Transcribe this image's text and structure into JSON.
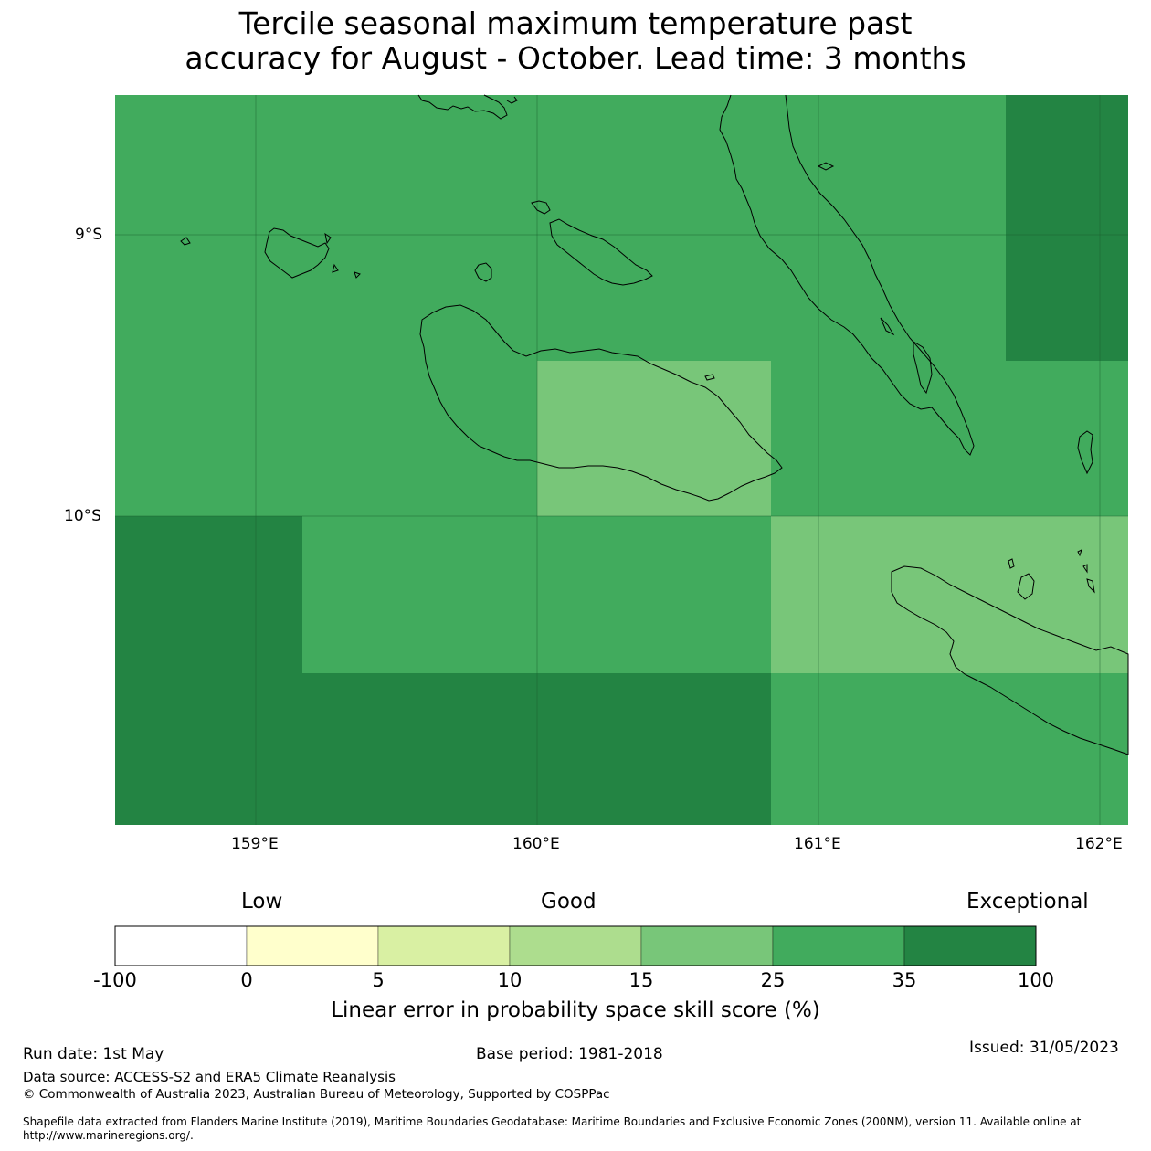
{
  "title": {
    "line1": "Tercile seasonal maximum temperature past",
    "line2": "accuracy for August - October. Lead time: 3 months"
  },
  "map": {
    "lat_labels": [
      "9°S",
      "10°S"
    ],
    "lon_labels": [
      "159°E",
      "160°E",
      "161°E",
      "162°E"
    ],
    "extent": {
      "lon_min": 158.5,
      "lon_max": 162.1,
      "lat_min": -11.1,
      "lat_max": -8.5
    },
    "colors": {
      "c25_35": "#41ab5d",
      "c15_25": "#78c679",
      "c35_100": "#238443"
    }
  },
  "colorbar": {
    "categories": {
      "low": "Low",
      "good": "Good",
      "exceptional": "Exceptional"
    },
    "ticks": [
      "-100",
      "0",
      "5",
      "10",
      "15",
      "25",
      "35",
      "100"
    ],
    "colors": [
      "#ffffff",
      "#ffffcc",
      "#d9f0a3",
      "#addd8e",
      "#78c679",
      "#41ab5d",
      "#238443"
    ],
    "label": "Linear error in probability space skill score (%)"
  },
  "footer": {
    "run_date": "Run date: 1st May",
    "base_period": "Base period: 1981-2018",
    "issued": "Issued: 31/05/2023",
    "data_source": "Data source: ACCESS-S2 and ERA5 Climate Reanalysis",
    "copyright": "© Commonwealth of Australia 2023, Australian Bureau of Meteorology, Supported by COSPPac",
    "shapefile_line1": "Shapefile data extracted from Flanders Marine Institute (2019), Maritime Boundaries Geodatabase: Maritime Boundaries and Exclusive Economic Zones (200NM), version 11. Available online at",
    "shapefile_line2": "http://www.marineregions.org/."
  }
}
